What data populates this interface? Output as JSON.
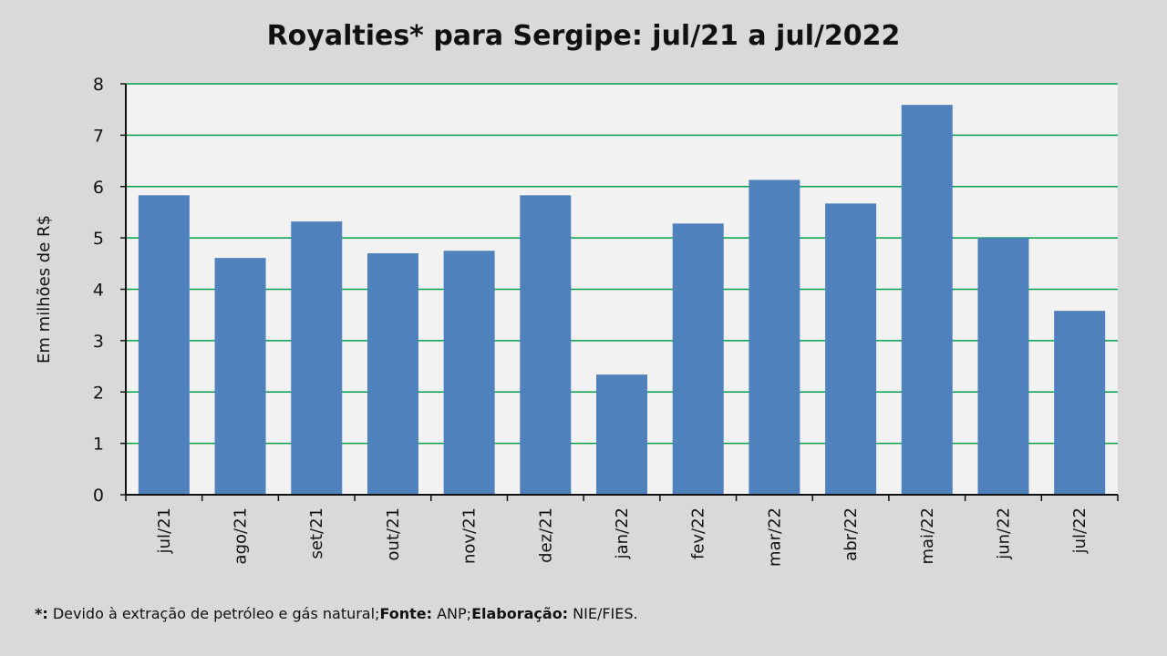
{
  "chart_data": {
    "type": "bar",
    "title": "Royalties* para Sergipe: jul/21 a jul/2022",
    "xlabel": "",
    "ylabel": "Em milhões de R$",
    "ylim": [
      0,
      8
    ],
    "yticks": [
      "0",
      "1",
      "2",
      "3",
      "4",
      "5",
      "6",
      "7",
      "8"
    ],
    "grid": true,
    "categories": [
      "jul/21",
      "ago/21",
      "set/21",
      "out/21",
      "nov/21",
      "dez/21",
      "jan/22",
      "fev/22",
      "mar/22",
      "abr/22",
      "mai/22",
      "jun/22",
      "jul/22"
    ],
    "values": [
      5.83,
      4.61,
      5.32,
      4.7,
      4.75,
      5.83,
      2.34,
      5.28,
      6.13,
      5.67,
      7.59,
      5.0,
      3.58
    ],
    "colors": {
      "bar": "#4f81bd",
      "grid": "#00a04a",
      "plot_bg": "#f2f2f2"
    }
  },
  "footnote": {
    "star_label": "*:",
    "star_text": " Devido à extração de petróleo e gás natural;",
    "source_label": "Fonte:",
    "source_text": " ANP;",
    "elab_label": "Elaboração:",
    "elab_text": " NIE/FIES."
  }
}
